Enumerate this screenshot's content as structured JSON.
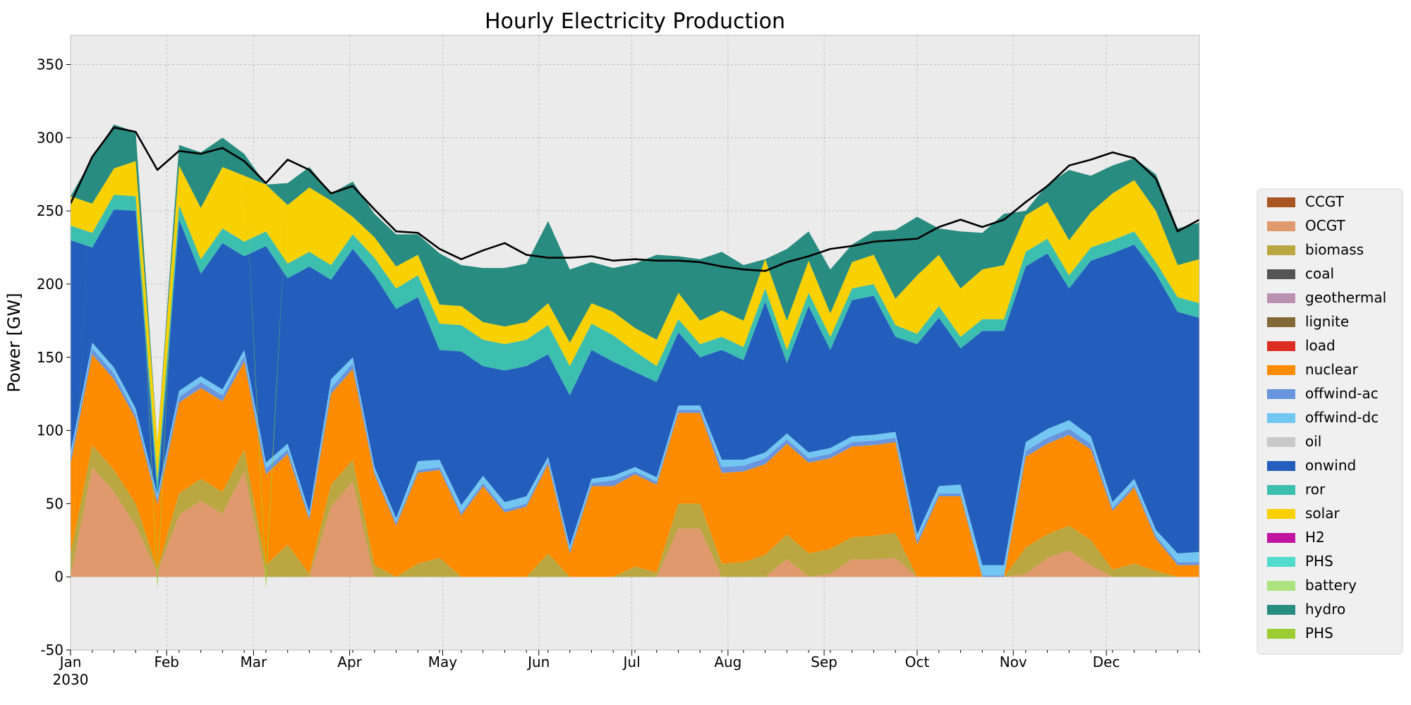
{
  "chart_data": {
    "type": "area",
    "title": "Hourly Electricity Production",
    "xlabel": "",
    "ylabel": "Power [GW]",
    "ylim": [
      -50,
      370
    ],
    "yticks": [
      -50,
      0,
      50,
      100,
      150,
      200,
      250,
      300,
      350
    ],
    "x_range": [
      "2030-01-01",
      "2030-12-31"
    ],
    "x": [
      "2030-01-01",
      "2030-01-08",
      "2030-01-15",
      "2030-01-22",
      "2030-01-29",
      "2030-02-05",
      "2030-02-12",
      "2030-02-19",
      "2030-02-26",
      "2030-03-05",
      "2030-03-12",
      "2030-03-19",
      "2030-03-26",
      "2030-04-02",
      "2030-04-09",
      "2030-04-16",
      "2030-04-23",
      "2030-04-30",
      "2030-05-07",
      "2030-05-14",
      "2030-05-21",
      "2030-05-28",
      "2030-06-04",
      "2030-06-11",
      "2030-06-18",
      "2030-06-25",
      "2030-07-02",
      "2030-07-09",
      "2030-07-16",
      "2030-07-23",
      "2030-07-30",
      "2030-08-06",
      "2030-08-13",
      "2030-08-20",
      "2030-08-27",
      "2030-09-03",
      "2030-09-10",
      "2030-09-17",
      "2030-09-24",
      "2030-10-01",
      "2030-10-08",
      "2030-10-15",
      "2030-10-22",
      "2030-10-29",
      "2030-11-05",
      "2030-11-12",
      "2030-11-19",
      "2030-11-26",
      "2030-12-03",
      "2030-12-10",
      "2030-12-17",
      "2030-12-24",
      "2030-12-31"
    ],
    "xtick_labels": [
      {
        "date": "2030-01-01",
        "label": "Jan",
        "sublabel": "2030"
      },
      {
        "date": "2030-02-01",
        "label": "Feb"
      },
      {
        "date": "2030-03-01",
        "label": "Mar"
      },
      {
        "date": "2030-04-01",
        "label": "Apr"
      },
      {
        "date": "2030-05-01",
        "label": "May"
      },
      {
        "date": "2030-06-01",
        "label": "Jun"
      },
      {
        "date": "2030-07-01",
        "label": "Jul"
      },
      {
        "date": "2030-08-01",
        "label": "Aug"
      },
      {
        "date": "2030-09-01",
        "label": "Sep"
      },
      {
        "date": "2030-10-01",
        "label": "Oct"
      },
      {
        "date": "2030-11-01",
        "label": "Nov"
      },
      {
        "date": "2030-12-01",
        "label": "Dec"
      }
    ],
    "grid": true,
    "stacked": true,
    "legend_position": "outside-right",
    "series": [
      {
        "name": "OCGT",
        "color": "#e0986d",
        "values": [
          0,
          75,
          58,
          35,
          3,
          42,
          52,
          43,
          72,
          0,
          0,
          0,
          48,
          65,
          0,
          0,
          0,
          0,
          0,
          0,
          0,
          0,
          0,
          0,
          0,
          0,
          0,
          0,
          33,
          33,
          0,
          0,
          0,
          12,
          0,
          2,
          12,
          12,
          13,
          0,
          0,
          0,
          0,
          0,
          2,
          13,
          18,
          8,
          0,
          0,
          0,
          0,
          0
        ]
      },
      {
        "name": "biomass",
        "color": "#baa741",
        "values": [
          15,
          15,
          15,
          15,
          2,
          15,
          15,
          15,
          15,
          8,
          22,
          2,
          15,
          15,
          8,
          0,
          9,
          13,
          0,
          0,
          0,
          0,
          16,
          0,
          0,
          0,
          7,
          3,
          17,
          17,
          9,
          10,
          15,
          17,
          16,
          17,
          15,
          16,
          17,
          0,
          0,
          0,
          0,
          0,
          18,
          16,
          17,
          17,
          5,
          9,
          4,
          0,
          0
        ]
      },
      {
        "name": "nuclear",
        "color": "#ff8c00",
        "values": [
          62,
          62,
          62,
          58,
          45,
          62,
          62,
          62,
          60,
          62,
          62,
          37,
          62,
          62,
          62,
          35,
          62,
          60,
          42,
          62,
          44,
          48,
          61,
          16,
          62,
          62,
          63,
          60,
          62,
          62,
          62,
          62,
          62,
          62,
          62,
          62,
          62,
          62,
          62,
          22,
          55,
          55,
          0,
          0,
          62,
          62,
          62,
          62,
          40,
          52,
          22,
          8,
          8
        ]
      },
      {
        "name": "offwind-ac",
        "color": "#6895dd",
        "values": [
          4,
          4,
          4,
          3,
          3,
          4,
          4,
          4,
          4,
          4,
          3,
          2,
          4,
          4,
          2,
          2,
          2,
          2,
          2,
          2,
          2,
          2,
          2,
          2,
          2,
          4,
          2,
          2,
          2,
          2,
          4,
          4,
          4,
          3,
          3,
          3,
          3,
          3,
          3,
          3,
          2,
          2,
          1,
          1,
          4,
          4,
          4,
          4,
          2,
          2,
          2,
          2,
          2
        ]
      },
      {
        "name": "offwind-dc",
        "color": "#74c6f2",
        "values": [
          4,
          4,
          4,
          4,
          3,
          4,
          4,
          4,
          4,
          4,
          4,
          3,
          6,
          4,
          3,
          3,
          6,
          5,
          5,
          5,
          5,
          5,
          3,
          3,
          3,
          3,
          3,
          3,
          3,
          3,
          5,
          4,
          4,
          4,
          4,
          4,
          4,
          4,
          4,
          4,
          5,
          6,
          7,
          7,
          6,
          6,
          6,
          5,
          4,
          4,
          4,
          6,
          7
        ]
      },
      {
        "name": "onwind",
        "color": "#235ebc",
        "values": [
          145,
          65,
          108,
          135,
          0,
          117,
          70,
          100,
          64,
          148,
          113,
          168,
          68,
          74,
          131,
          143,
          112,
          75,
          105,
          75,
          90,
          89,
          70,
          103,
          88,
          78,
          65,
          65,
          50,
          33,
          75,
          68,
          103,
          48,
          100,
          67,
          93,
          95,
          65,
          130,
          115,
          93,
          160,
          160,
          120,
          120,
          90,
          120,
          170,
          160,
          175,
          165,
          160
        ]
      },
      {
        "name": "ror",
        "color": "#3dbfb0",
        "values": [
          10,
          10,
          10,
          10,
          10,
          10,
          10,
          10,
          10,
          10,
          10,
          10,
          10,
          10,
          12,
          14,
          15,
          18,
          18,
          18,
          18,
          18,
          20,
          20,
          18,
          18,
          14,
          11,
          9,
          9,
          9,
          9,
          9,
          9,
          9,
          9,
          8,
          8,
          8,
          7,
          8,
          8,
          8,
          8,
          10,
          10,
          9,
          9,
          9,
          9,
          8,
          10,
          10
        ]
      },
      {
        "name": "solar",
        "color": "#f9d002",
        "values": [
          20,
          20,
          18,
          24,
          26,
          27,
          35,
          42,
          45,
          32,
          40,
          44,
          44,
          12,
          14,
          15,
          14,
          13,
          13,
          12,
          12,
          12,
          15,
          16,
          14,
          16,
          16,
          18,
          18,
          16,
          18,
          18,
          20,
          20,
          22,
          16,
          18,
          20,
          18,
          40,
          35,
          33,
          34,
          37,
          25,
          25,
          24,
          24,
          32,
          35,
          35,
          22,
          30
        ]
      },
      {
        "name": "hydro",
        "color": "#298c81",
        "values": [
          0,
          31,
          30,
          20,
          0,
          14,
          38,
          20,
          15,
          0,
          15,
          14,
          5,
          24,
          16,
          22,
          14,
          35,
          28,
          37,
          40,
          40,
          56,
          50,
          28,
          30,
          44,
          58,
          25,
          42,
          40,
          38,
          0,
          49,
          20,
          30,
          12,
          16,
          47,
          40,
          18,
          39,
          25,
          35,
          3,
          12,
          48,
          25,
          19,
          15,
          25,
          25,
          25
        ]
      },
      {
        "name": "PHS",
        "color": "#9ccc33",
        "values": [
          -2,
          0,
          0,
          0,
          -8,
          0,
          0,
          0,
          0,
          -8,
          0,
          0,
          0,
          0,
          0,
          0,
          0,
          0,
          0,
          0,
          0,
          0,
          0,
          0,
          0,
          0,
          0,
          0,
          0,
          0,
          0,
          0,
          0,
          0,
          0,
          0,
          0,
          0,
          0,
          0,
          0,
          0,
          0,
          0,
          0,
          0,
          0,
          0,
          0,
          0,
          0,
          0,
          0
        ]
      }
    ],
    "load": {
      "name": "load",
      "values": [
        255,
        287,
        307,
        304,
        278,
        291,
        289,
        293,
        284,
        269,
        285,
        278,
        262,
        267,
        251,
        236,
        235,
        224,
        217,
        223,
        228,
        220,
        218,
        218,
        219,
        216,
        217,
        216,
        216,
        215,
        212,
        210,
        209,
        215,
        219,
        224,
        226,
        229,
        230,
        231,
        239,
        244,
        239,
        244,
        256,
        267,
        281,
        285,
        290,
        286,
        272,
        236,
        244
      ]
    },
    "legend": [
      {
        "label": "CCGT",
        "color": "#a85522"
      },
      {
        "label": "OCGT",
        "color": "#e0986d"
      },
      {
        "label": "biomass",
        "color": "#baa741"
      },
      {
        "label": "coal",
        "color": "#545454"
      },
      {
        "label": "geothermal",
        "color": "#ba91b1"
      },
      {
        "label": "lignite",
        "color": "#826837"
      },
      {
        "label": "load",
        "color": "#dd2e23"
      },
      {
        "label": "nuclear",
        "color": "#ff8c00"
      },
      {
        "label": "offwind-ac",
        "color": "#6895dd"
      },
      {
        "label": "offwind-dc",
        "color": "#74c6f2"
      },
      {
        "label": "oil",
        "color": "#c9c9c9"
      },
      {
        "label": "onwind",
        "color": "#235ebc"
      },
      {
        "label": "ror",
        "color": "#3dbfb0"
      },
      {
        "label": "solar",
        "color": "#f9d002"
      },
      {
        "label": "H2",
        "color": "#bf13a0"
      },
      {
        "label": "PHS",
        "color": "#51dbcc"
      },
      {
        "label": "battery",
        "color": "#ace37f"
      },
      {
        "label": "hydro",
        "color": "#298c81"
      },
      {
        "label": "PHS",
        "color": "#9ccc33"
      }
    ]
  }
}
